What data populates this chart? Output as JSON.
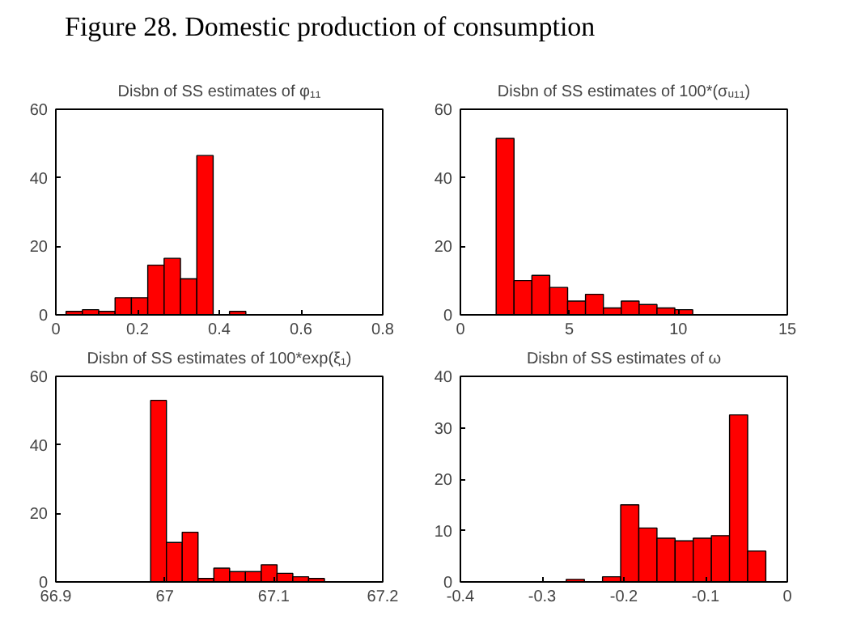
{
  "chart_data": [
    {
      "type": "histogram",
      "title": "Disbn of SS estimates of φ₁₁",
      "annotations": [
        "Figure 28. Domestic production of consumption"
      ],
      "color": "#ff0000",
      "grid": false,
      "bins": [
        0.025,
        0.065,
        0.105,
        0.145,
        0.185,
        0.225,
        0.265,
        0.305,
        0.345,
        0.385,
        0.425,
        0.465
      ],
      "values": [
        1,
        1.5,
        1,
        5,
        5,
        14.5,
        16.5,
        10.5,
        46.5,
        0,
        1
      ],
      "xlim": [
        0,
        0.8
      ],
      "xticks": [
        0,
        0.2,
        0.4,
        0.6,
        0.8
      ],
      "ylim": [
        0,
        60
      ],
      "yticks": [
        0,
        20,
        40,
        60
      ]
    },
    {
      "type": "histogram",
      "title": "Disbn of SS estimates of 100*(σᵤ₁₁)",
      "color": "#ff0000",
      "grid": false,
      "bins": [
        1.64,
        2.46,
        3.28,
        4.1,
        4.92,
        5.74,
        6.56,
        7.38,
        8.2,
        9.02,
        9.84,
        10.66
      ],
      "values": [
        51.5,
        10,
        11.5,
        8,
        4,
        6,
        2,
        4,
        3,
        2,
        1.5
      ],
      "xlim": [
        0,
        15
      ],
      "xticks": [
        0,
        5,
        10,
        15
      ],
      "ylim": [
        0,
        60
      ],
      "yticks": [
        0,
        20,
        40,
        60
      ]
    },
    {
      "type": "histogram",
      "title": "Disbn of SS estimates of 100*exp(ξ₁)",
      "color": "#ff0000",
      "grid": false,
      "bins": [
        66.987,
        67.0015,
        67.016,
        67.0305,
        67.045,
        67.0595,
        67.074,
        67.0885,
        67.103,
        67.1175,
        67.132,
        67.1465
      ],
      "values": [
        53,
        11.5,
        14.5,
        1,
        4,
        3,
        3,
        5,
        2.5,
        1.5,
        1
      ],
      "xlim": [
        66.9,
        67.2
      ],
      "xticks": [
        66.9,
        67,
        67.1,
        67.2
      ],
      "ylim": [
        0,
        60
      ],
      "yticks": [
        0,
        20,
        40,
        60
      ]
    },
    {
      "type": "histogram",
      "title": "Disbn of SS estimates of ω",
      "color": "#ff0000",
      "grid": false,
      "bins": [
        -0.2705,
        -0.2483,
        -0.2261,
        -0.2039,
        -0.1817,
        -0.1595,
        -0.1373,
        -0.1151,
        -0.0929,
        -0.0707,
        -0.0485,
        -0.0263
      ],
      "values": [
        0.5,
        0,
        1,
        15,
        10.5,
        8.5,
        8,
        8.5,
        9,
        32.5,
        6
      ],
      "xlim": [
        -0.4,
        0
      ],
      "xticks": [
        -0.4,
        -0.3,
        -0.2,
        -0.1,
        0
      ],
      "ylim": [
        0,
        40
      ],
      "yticks": [
        0,
        10,
        20,
        30,
        40
      ]
    }
  ]
}
